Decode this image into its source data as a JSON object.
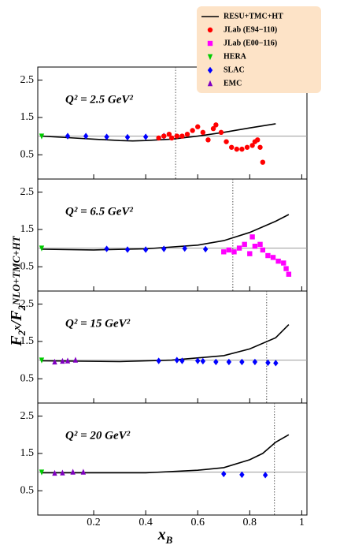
{
  "legend": {
    "position": "top-right",
    "background": "#fde3c7",
    "entries": [
      {
        "name": "RESU+TMC+HT",
        "color": "#000000",
        "marker": "line"
      },
      {
        "name": "JLab (E94−110)",
        "color": "#ff0000",
        "marker": "circle"
      },
      {
        "name": "JLab (E00−116)",
        "color": "#ff00ff",
        "marker": "square"
      },
      {
        "name": "HERA",
        "color": "#00cc00",
        "marker": "triangle-down"
      },
      {
        "name": "SLAC",
        "color": "#0000ff",
        "marker": "diamond"
      },
      {
        "name": "EMC",
        "color": "#8000c0",
        "marker": "triangle-up"
      }
    ]
  },
  "ylabel": [
    {
      "text": "F"
    },
    {
      "text": "2",
      "shift": "sub"
    },
    {
      "text": "x",
      "shift": "sup"
    },
    {
      "text": "/F"
    },
    {
      "text": "2",
      "shift": "sub"
    },
    {
      "text": "NLO+TMC+HT",
      "shift": "sup"
    }
  ],
  "xlabel": [
    {
      "text": "x"
    },
    {
      "text": "B",
      "shift": "sub"
    }
  ],
  "chart_data": [
    {
      "type": "combo",
      "title": "Q² = 2.5 GeV²",
      "xlim": [
        -0.015,
        1.02
      ],
      "ylim": [
        -0.15,
        2.85
      ],
      "xticks": [
        0.2,
        0.4,
        0.6,
        0.8,
        1
      ],
      "xtick_labels": false,
      "yticks": [
        0.5,
        1.5,
        2.5
      ],
      "hline": 1,
      "vline": 0.515,
      "series": [
        {
          "type": "line",
          "color": "#000000",
          "x": [
            0,
            0.1,
            0.2,
            0.3,
            0.35,
            0.4,
            0.5,
            0.6,
            0.7,
            0.8,
            0.9
          ],
          "values": [
            1.0,
            0.96,
            0.92,
            0.88,
            0.87,
            0.88,
            0.92,
            1.0,
            1.1,
            1.22,
            1.33
          ]
        },
        {
          "type": "scatter",
          "color": "#00cc00",
          "marker": "triangle-down",
          "x": [
            0.0
          ],
          "values": [
            1.0
          ]
        },
        {
          "type": "scatter",
          "color": "#0000ff",
          "marker": "diamond",
          "x": [
            0.1,
            0.17,
            0.25,
            0.33,
            0.4,
            0.47
          ],
          "values": [
            1.0,
            1.0,
            0.98,
            0.97,
            0.98,
            1.0
          ]
        },
        {
          "type": "scatter",
          "color": "#ff0000",
          "marker": "circle",
          "x": [
            0.45,
            0.47,
            0.49,
            0.5,
            0.52,
            0.54,
            0.56,
            0.58,
            0.6,
            0.62,
            0.64,
            0.66,
            0.67,
            0.69,
            0.71,
            0.73,
            0.75,
            0.77,
            0.79,
            0.81,
            0.82,
            0.83,
            0.84,
            0.85
          ],
          "values": [
            0.95,
            1.0,
            1.05,
            0.95,
            1.0,
            1.0,
            1.05,
            1.15,
            1.25,
            1.1,
            0.9,
            1.2,
            1.3,
            1.1,
            0.85,
            0.7,
            0.65,
            0.65,
            0.7,
            0.75,
            0.85,
            0.9,
            0.7,
            0.3
          ]
        }
      ]
    },
    {
      "type": "combo",
      "title": "Q² = 6.5 GeV²",
      "xlim": [
        -0.015,
        1.02
      ],
      "ylim": [
        -0.15,
        2.85
      ],
      "xticks": [
        0.2,
        0.4,
        0.6,
        0.8,
        1
      ],
      "xtick_labels": false,
      "yticks": [
        0.5,
        1.5,
        2.5
      ],
      "hline": 1,
      "vline": 0.735,
      "series": [
        {
          "type": "line",
          "color": "#000000",
          "x": [
            0,
            0.2,
            0.4,
            0.6,
            0.7,
            0.8,
            0.9,
            0.95
          ],
          "values": [
            0.97,
            0.95,
            0.98,
            1.08,
            1.2,
            1.42,
            1.72,
            1.9
          ]
        },
        {
          "type": "scatter",
          "color": "#00cc00",
          "marker": "triangle-down",
          "x": [
            0.0
          ],
          "values": [
            1.0
          ]
        },
        {
          "type": "scatter",
          "color": "#0000ff",
          "marker": "diamond",
          "x": [
            0.25,
            0.33,
            0.4,
            0.47,
            0.55,
            0.63
          ],
          "values": [
            0.98,
            0.96,
            0.96,
            0.98,
            0.99,
            0.97
          ]
        },
        {
          "type": "scatter",
          "color": "#ff00ff",
          "marker": "square",
          "x": [
            0.7,
            0.72,
            0.74,
            0.76,
            0.78,
            0.8,
            0.81,
            0.82,
            0.84,
            0.85,
            0.87,
            0.89,
            0.91,
            0.93,
            0.94,
            0.95
          ],
          "values": [
            0.9,
            0.95,
            0.9,
            1.0,
            1.1,
            0.85,
            1.3,
            1.05,
            1.1,
            0.95,
            0.8,
            0.75,
            0.65,
            0.6,
            0.45,
            0.3
          ]
        }
      ]
    },
    {
      "type": "combo",
      "title": "Q² = 15 GeV²",
      "xlim": [
        -0.015,
        1.02
      ],
      "ylim": [
        -0.15,
        2.85
      ],
      "xticks": [
        0.2,
        0.4,
        0.6,
        0.8,
        1
      ],
      "xtick_labels": false,
      "yticks": [
        0.5,
        1.5,
        2.5
      ],
      "hline": 1,
      "vline": 0.865,
      "series": [
        {
          "type": "line",
          "color": "#000000",
          "x": [
            0,
            0.3,
            0.5,
            0.7,
            0.8,
            0.9,
            0.95
          ],
          "values": [
            0.98,
            0.96,
            1.0,
            1.12,
            1.3,
            1.6,
            1.95
          ]
        },
        {
          "type": "scatter",
          "color": "#00cc00",
          "marker": "triangle-down",
          "x": [
            0.0
          ],
          "values": [
            1.0
          ]
        },
        {
          "type": "scatter",
          "color": "#8000c0",
          "marker": "triangle-up",
          "x": [
            0.05,
            0.08,
            0.1,
            0.13
          ],
          "values": [
            0.95,
            0.97,
            0.98,
            1.0
          ]
        },
        {
          "type": "scatter",
          "color": "#0000ff",
          "marker": "diamond",
          "x": [
            0.45,
            0.52,
            0.54,
            0.6,
            0.62,
            0.67,
            0.72,
            0.77,
            0.82,
            0.87,
            0.9
          ],
          "values": [
            0.98,
            1.0,
            0.98,
            0.98,
            0.97,
            0.95,
            0.95,
            0.95,
            0.95,
            0.93,
            0.92
          ]
        }
      ]
    },
    {
      "type": "combo",
      "title": "Q² = 20 GeV²",
      "xlim": [
        -0.015,
        1.02
      ],
      "ylim": [
        -0.15,
        2.85
      ],
      "xticks": [
        0.2,
        0.4,
        0.6,
        0.8,
        1
      ],
      "xtick_labels": true,
      "yticks": [
        0.5,
        1.5,
        2.5
      ],
      "hline": 1,
      "vline": 0.895,
      "series": [
        {
          "type": "line",
          "color": "#000000",
          "x": [
            0,
            0.4,
            0.6,
            0.7,
            0.8,
            0.85,
            0.9,
            0.95
          ],
          "values": [
            0.98,
            0.98,
            1.05,
            1.12,
            1.33,
            1.5,
            1.8,
            2.0
          ]
        },
        {
          "type": "scatter",
          "color": "#00cc00",
          "marker": "triangle-down",
          "x": [
            0.0
          ],
          "values": [
            1.0
          ]
        },
        {
          "type": "scatter",
          "color": "#8000c0",
          "marker": "triangle-up",
          "x": [
            0.05,
            0.08,
            0.12,
            0.16
          ],
          "values": [
            0.97,
            0.98,
            1.0,
            1.0
          ]
        },
        {
          "type": "scatter",
          "color": "#0000ff",
          "marker": "diamond",
          "x": [
            0.7,
            0.77,
            0.86
          ],
          "values": [
            0.95,
            0.93,
            0.92
          ]
        }
      ]
    }
  ]
}
